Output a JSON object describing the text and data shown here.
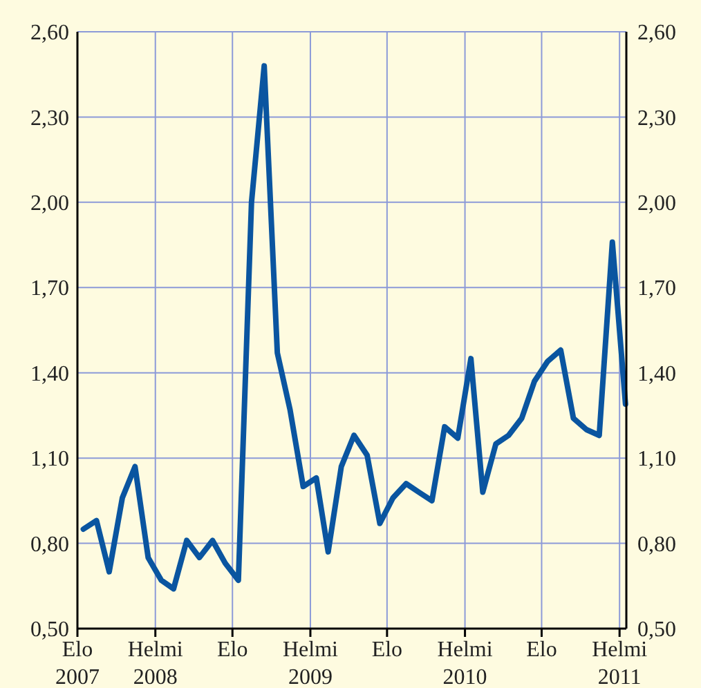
{
  "chart_data": {
    "type": "line",
    "x": [
      "2007-08-15",
      "2007-09-15",
      "2007-10-15",
      "2007-11-15",
      "2007-12-15",
      "2008-01-15",
      "2008-02-15",
      "2008-03-15",
      "2008-04-15",
      "2008-05-15",
      "2008-06-15",
      "2008-07-15",
      "2008-08-15",
      "2008-09-15",
      "2008-10-15",
      "2008-11-15",
      "2008-12-15",
      "2009-01-15",
      "2009-02-15",
      "2009-03-15",
      "2009-04-15",
      "2009-05-15",
      "2009-06-15",
      "2009-07-15",
      "2009-08-15",
      "2009-09-15",
      "2009-10-15",
      "2009-11-15",
      "2009-12-15",
      "2010-01-15",
      "2010-02-15",
      "2010-03-15",
      "2010-04-15",
      "2010-05-15",
      "2010-06-15",
      "2010-07-15",
      "2010-08-15",
      "2010-09-15",
      "2010-10-15",
      "2010-11-15",
      "2010-12-15",
      "2011-01-15",
      "2011-02-15"
    ],
    "series": [
      {
        "color": "#0a55a0",
        "values": [
          0.85,
          0.88,
          0.7,
          0.96,
          1.07,
          0.75,
          0.67,
          0.64,
          0.81,
          0.75,
          0.81,
          0.73,
          0.67,
          2.0,
          2.48,
          1.47,
          1.27,
          1.0,
          1.03,
          0.77,
          1.07,
          1.18,
          1.11,
          0.87,
          0.96,
          1.01,
          0.98,
          0.95,
          1.21,
          1.17,
          1.45,
          0.98,
          1.15,
          1.18,
          1.24,
          1.37,
          1.44,
          1.48,
          1.24,
          1.2,
          1.18,
          1.86,
          1.29
        ]
      }
    ],
    "xlim": [
      "2007-08-01",
      "2011-02-17"
    ],
    "xticks": [
      {
        "value": "2007-08",
        "label": "Elo\n2007"
      },
      {
        "value": "2008-02",
        "label": "Helmi\n2008"
      },
      {
        "value": "2008-08",
        "label": "Elo"
      },
      {
        "value": "2009-02",
        "label": "Helmi\n2009"
      },
      {
        "value": "2009-08",
        "label": "Elo"
      },
      {
        "value": "2010-02",
        "label": "Helmi\n2010"
      },
      {
        "value": "2010-08",
        "label": "Elo"
      },
      {
        "value": "2011-02",
        "label": "Helmi\n2011"
      }
    ],
    "ylim": [
      0.5,
      2.6
    ],
    "yticks": [
      {
        "value": 0.5,
        "label": "0,50"
      },
      {
        "value": 0.8,
        "label": "0,80"
      },
      {
        "value": 1.1,
        "label": "1,10"
      },
      {
        "value": 1.4,
        "label": "1,40"
      },
      {
        "value": 1.7,
        "label": "1,70"
      },
      {
        "value": 2.0,
        "label": "2,00"
      },
      {
        "value": 2.3,
        "label": "2,30"
      },
      {
        "value": 2.6,
        "label": "2,60"
      }
    ],
    "y2lim": [
      0.5,
      2.6
    ],
    "y2ticks": [
      {
        "value": 0.5,
        "label": "0,50"
      },
      {
        "value": 0.8,
        "label": "0,80"
      },
      {
        "value": 1.1,
        "label": "1,10"
      },
      {
        "value": 1.4,
        "label": "1,40"
      },
      {
        "value": 1.7,
        "label": "1,70"
      },
      {
        "value": 2.0,
        "label": "2,00"
      },
      {
        "value": 2.3,
        "label": "2,30"
      },
      {
        "value": 2.6,
        "label": "2,60"
      }
    ],
    "grid": true,
    "line_style": "solid",
    "marker": "none"
  }
}
